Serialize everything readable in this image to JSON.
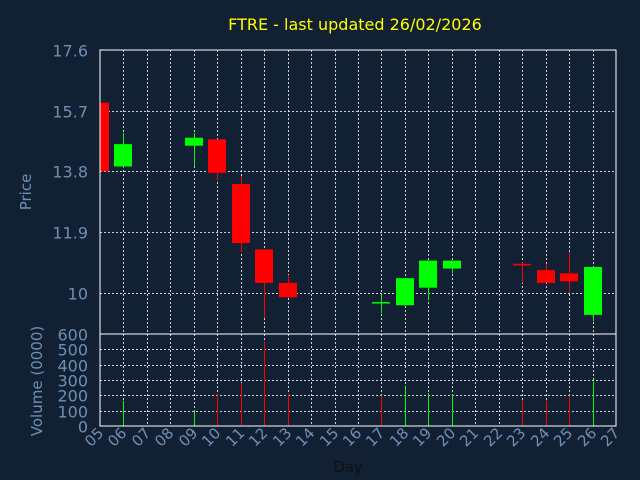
{
  "colors": {
    "background": "#112033",
    "axis": "#ffffff",
    "grid": "#ffffff",
    "title": "#ffff00",
    "label": "#6f8fb4",
    "up": "#00ff00",
    "down": "#ff0000"
  },
  "chart_data": {
    "type": "candlestick",
    "title": "FTRE - last updated 26/02/2026",
    "xlabel": "Day",
    "ylabel_price": "Price",
    "ylabel_volume": "Volume (0000)",
    "price_ylim": [
      8.7,
      17.6
    ],
    "price_ticks": [
      "17.6",
      "15.7",
      "13.8",
      "11.9",
      "10"
    ],
    "price_tick_values": [
      17.6,
      15.7,
      13.8,
      11.9,
      10.0
    ],
    "volume_ylim": [
      0,
      600
    ],
    "volume_ticks": [
      "600",
      "500",
      "400",
      "300",
      "200",
      "100",
      "0"
    ],
    "volume_tick_values": [
      600,
      500,
      400,
      300,
      200,
      100,
      0
    ],
    "x_ticks": [
      "05",
      "06",
      "07",
      "08",
      "09",
      "10",
      "11",
      "12",
      "13",
      "14",
      "15",
      "16",
      "17",
      "18",
      "19",
      "20",
      "21",
      "22",
      "23",
      "24",
      "25",
      "26",
      "27"
    ],
    "x_tick_values": [
      5,
      6,
      7,
      8,
      9,
      10,
      11,
      12,
      13,
      14,
      15,
      16,
      17,
      18,
      19,
      20,
      21,
      22,
      23,
      24,
      25,
      26,
      27
    ],
    "x_range": [
      5,
      27
    ],
    "grid": true,
    "candles": [
      {
        "day": 5.0,
        "open": 15.95,
        "high": 15.95,
        "low": 13.8,
        "close": 13.8
      },
      {
        "day": 6.0,
        "open": 13.95,
        "high": 15.0,
        "low": 13.9,
        "close": 14.65
      },
      {
        "day": 9.0,
        "open": 14.6,
        "high": 15.0,
        "low": 13.95,
        "close": 14.85
      },
      {
        "day": 10.0,
        "open": 14.8,
        "high": 14.8,
        "low": 13.5,
        "close": 13.75
      },
      {
        "day": 11.0,
        "open": 13.4,
        "high": 13.65,
        "low": 11.25,
        "close": 11.55
      },
      {
        "day": 12.0,
        "open": 11.35,
        "high": 11.35,
        "low": 9.2,
        "close": 10.3
      },
      {
        "day": 13.0,
        "open": 10.3,
        "high": 10.55,
        "low": 9.85,
        "close": 9.85
      },
      {
        "day": 17.0,
        "open": 9.7,
        "high": 9.95,
        "low": 9.35,
        "close": 9.7
      },
      {
        "day": 18.0,
        "open": 9.6,
        "high": 10.45,
        "low": 9.6,
        "close": 10.45
      },
      {
        "day": 19.0,
        "open": 10.15,
        "high": 11.0,
        "low": 9.75,
        "close": 11.0
      },
      {
        "day": 20.0,
        "open": 10.75,
        "high": 11.0,
        "low": 10.6,
        "close": 11.0
      },
      {
        "day": 23.0,
        "open": 10.9,
        "high": 10.95,
        "low": 10.3,
        "close": 10.85
      },
      {
        "day": 24.0,
        "open": 10.7,
        "high": 10.9,
        "low": 10.3,
        "close": 10.3
      },
      {
        "day": 25.0,
        "open": 10.6,
        "high": 11.25,
        "low": 10.0,
        "close": 10.35
      },
      {
        "day": 26.0,
        "open": 9.3,
        "high": 10.8,
        "low": 9.1,
        "close": 10.8
      }
    ],
    "volume": [
      {
        "day": 6.0,
        "value": 165,
        "dir": "up"
      },
      {
        "day": 9.0,
        "value": 100,
        "dir": "up"
      },
      {
        "day": 10.0,
        "value": 210,
        "dir": "down"
      },
      {
        "day": 11.0,
        "value": 280,
        "dir": "down"
      },
      {
        "day": 12.0,
        "value": 550,
        "dir": "down"
      },
      {
        "day": 13.0,
        "value": 210,
        "dir": "down"
      },
      {
        "day": 17.0,
        "value": 200,
        "dir": "down"
      },
      {
        "day": 18.0,
        "value": 255,
        "dir": "up"
      },
      {
        "day": 19.0,
        "value": 215,
        "dir": "up"
      },
      {
        "day": 20.0,
        "value": 205,
        "dir": "up"
      },
      {
        "day": 23.0,
        "value": 170,
        "dir": "down"
      },
      {
        "day": 24.0,
        "value": 165,
        "dir": "down"
      },
      {
        "day": 25.0,
        "value": 200,
        "dir": "down"
      },
      {
        "day": 26.0,
        "value": 290,
        "dir": "up"
      }
    ]
  }
}
